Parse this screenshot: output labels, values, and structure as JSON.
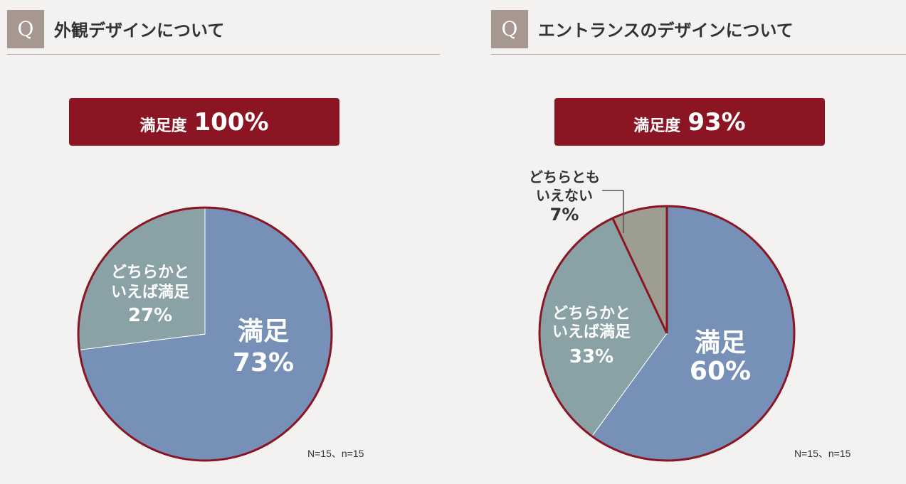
{
  "chart_data": [
    {
      "type": "pie",
      "title": "外観デザインについて",
      "q_mark": "Q",
      "summary": {
        "label": "満足度",
        "value": "100%"
      },
      "slices": [
        {
          "label": "満足",
          "value": 73,
          "value_text": "73%",
          "color": "#7690b7"
        },
        {
          "label_lines": [
            "どちらかと",
            "いえば満足"
          ],
          "value": 27,
          "value_text": "27%",
          "color": "#8aa2a5"
        }
      ],
      "note": "N=15、n=15"
    },
    {
      "type": "pie",
      "title": "エントランスのデザインについて",
      "q_mark": "Q",
      "summary": {
        "label": "満足度",
        "value": "93%"
      },
      "slices": [
        {
          "label": "満足",
          "value": 60,
          "value_text": "60%",
          "color": "#7690b7"
        },
        {
          "label_lines": [
            "どちらかと",
            "いえば満足"
          ],
          "value": 33,
          "value_text": "33%",
          "color": "#8aa2a5"
        },
        {
          "label_lines": [
            "どちらとも",
            "いえない"
          ],
          "value": 7,
          "value_text": "7%",
          "color": "#9d9d92"
        }
      ],
      "note": "N=15、n=15"
    }
  ],
  "colors": {
    "accent": "#8b1522",
    "outline": "#8b1522",
    "q_box": "#a69890",
    "background": "#f3f2f0"
  }
}
